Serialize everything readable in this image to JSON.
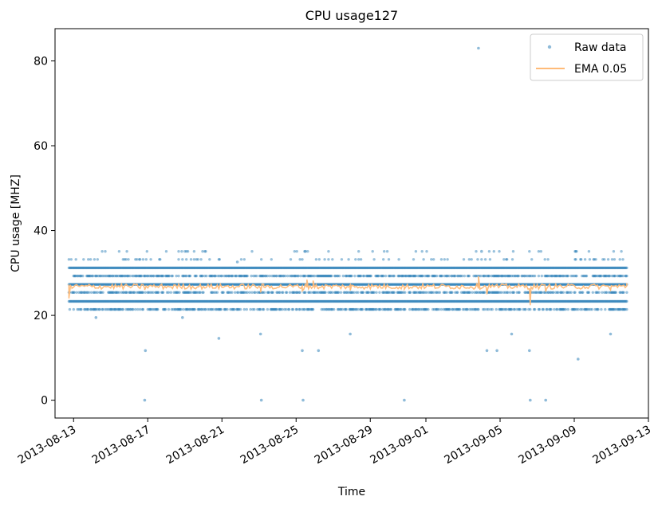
{
  "chart_data": {
    "type": "scatter",
    "title": "CPU usage127",
    "xlabel": "Time",
    "ylabel": "CPU usage [MHZ]",
    "x_type": "date",
    "xlim": [
      "2013-08-12",
      "2013-09-13"
    ],
    "ylim": [
      -4.2,
      87.6
    ],
    "xticks": [
      "2013-08-13",
      "2013-08-17",
      "2013-08-21",
      "2013-08-25",
      "2013-08-29",
      "2013-09-01",
      "2013-09-05",
      "2013-09-09",
      "2013-09-13"
    ],
    "yticks": [
      0,
      20,
      40,
      60,
      80
    ],
    "grid": false,
    "legend_position": "top-right",
    "series": [
      {
        "name": "Raw data",
        "style": "points",
        "color": "#1f77b4",
        "date_range": [
          "2013-08-12 18:00",
          "2013-09-11 20:00"
        ],
        "dense_levels": [
          23.3,
          27.3,
          31.2
        ],
        "common_values": [
          21.4,
          25.4,
          29.3,
          33.2,
          35.1
        ],
        "points": [
          [
            "2013-08-16 20:00",
            0
          ],
          [
            "2013-08-16 21:00",
            11.7
          ],
          [
            "2013-08-23 03:00",
            0
          ],
          [
            "2013-08-23 02:00",
            15.6
          ],
          [
            "2013-08-25 09:00",
            0
          ],
          [
            "2013-08-25 08:00",
            11.7
          ],
          [
            "2013-08-26 05:00",
            11.7
          ],
          [
            "2013-08-27 22:00",
            15.6
          ],
          [
            "2013-08-30 20:00",
            0
          ],
          [
            "2013-08-20 20:00",
            14.6
          ],
          [
            "2013-09-03 20:00",
            83.0
          ],
          [
            "2013-09-04 07:00",
            11.7
          ],
          [
            "2013-09-04 20:00",
            11.7
          ],
          [
            "2013-09-05 15:00",
            15.6
          ],
          [
            "2013-09-06 14:00",
            11.7
          ],
          [
            "2013-09-06 15:00",
            0
          ],
          [
            "2013-09-07 11:00",
            0
          ],
          [
            "2013-09-09 05:00",
            9.7
          ],
          [
            "2013-09-10 23:00",
            15.6
          ],
          [
            "2013-08-14 05:00",
            19.5
          ],
          [
            "2013-08-18 21:00",
            19.5
          ],
          [
            "2013-08-25 12:00",
            35.1
          ],
          [
            "2013-09-04 00:00",
            35.1
          ],
          [
            "2013-08-21 20:00",
            32.6
          ]
        ]
      },
      {
        "name": "EMA 0.05",
        "style": "line",
        "color": "#ffbb78",
        "baseline": 26.8,
        "points": [
          [
            "2013-08-12 18:00",
            24.0
          ],
          [
            "2013-08-12 22:00",
            26.4
          ],
          [
            "2013-08-16 20:00",
            26.0
          ],
          [
            "2013-08-16 23:00",
            26.7
          ],
          [
            "2013-08-23 02:00",
            25.4
          ],
          [
            "2013-08-23 06:00",
            26.7
          ],
          [
            "2013-08-25 08:00",
            25.8
          ],
          [
            "2013-08-25 14:00",
            28.4
          ],
          [
            "2013-08-25 22:00",
            28.2
          ],
          [
            "2013-08-26 05:00",
            26.3
          ],
          [
            "2013-08-27 22:00",
            25.9
          ],
          [
            "2013-08-30 20:00",
            26.2
          ],
          [
            "2013-09-03 20:00",
            29.2
          ],
          [
            "2013-09-04 07:00",
            25.0
          ],
          [
            "2013-09-04 12:00",
            26.8
          ],
          [
            "2013-09-06 15:00",
            22.4
          ],
          [
            "2013-09-06 22:00",
            26.4
          ],
          [
            "2013-09-07 11:00",
            25.6
          ],
          [
            "2013-09-09 05:00",
            26.4
          ],
          [
            "2013-09-10 23:00",
            26.0
          ],
          [
            "2013-09-11 20:00",
            27.6
          ]
        ]
      }
    ]
  }
}
